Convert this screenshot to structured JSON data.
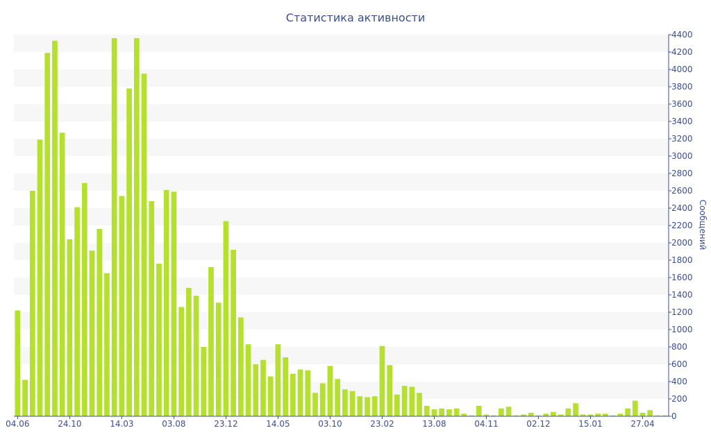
{
  "chart_data": {
    "type": "bar",
    "title": "Статистика активности",
    "ylabel": "Сообщений",
    "ylim": [
      0,
      4400
    ],
    "yticks": [
      0,
      200,
      400,
      600,
      800,
      1000,
      1200,
      1400,
      1600,
      1800,
      2000,
      2200,
      2400,
      2600,
      2800,
      3000,
      3200,
      3400,
      3600,
      3800,
      4000,
      4200,
      4400
    ],
    "x_tick_labels": [
      {
        "index": 0,
        "label": "04.06"
      },
      {
        "index": 7,
        "label": "24.10"
      },
      {
        "index": 14,
        "label": "14.03"
      },
      {
        "index": 21,
        "label": "03.08"
      },
      {
        "index": 28,
        "label": "23.12"
      },
      {
        "index": 35,
        "label": "14.05"
      },
      {
        "index": 42,
        "label": "03.10"
      },
      {
        "index": 49,
        "label": "23.02"
      },
      {
        "index": 56,
        "label": "13.08"
      },
      {
        "index": 63,
        "label": "04.11"
      },
      {
        "index": 70,
        "label": "02.12"
      },
      {
        "index": 77,
        "label": "15.01"
      },
      {
        "index": 84,
        "label": "27.04"
      }
    ],
    "values": [
      1220,
      420,
      2600,
      3190,
      4190,
      4330,
      3270,
      2040,
      2410,
      2690,
      1910,
      2160,
      1650,
      4360,
      2540,
      3780,
      4360,
      3950,
      2480,
      1760,
      2610,
      2590,
      1260,
      1480,
      1390,
      800,
      1720,
      1310,
      2250,
      1920,
      1140,
      830,
      600,
      650,
      460,
      830,
      680,
      490,
      540,
      530,
      270,
      380,
      580,
      430,
      310,
      290,
      230,
      220,
      230,
      810,
      590,
      250,
      350,
      340,
      270,
      120,
      80,
      90,
      80,
      90,
      30,
      10,
      120,
      20,
      10,
      90,
      110,
      10,
      20,
      40,
      10,
      30,
      50,
      20,
      90,
      150,
      20,
      20,
      30,
      30,
      10,
      30,
      90,
      180,
      40,
      70,
      10,
      10
    ],
    "grid": true,
    "bar_color": "#b5e02f",
    "band_color": "#f7f7f7",
    "text_color": "#3b4f8c"
  }
}
